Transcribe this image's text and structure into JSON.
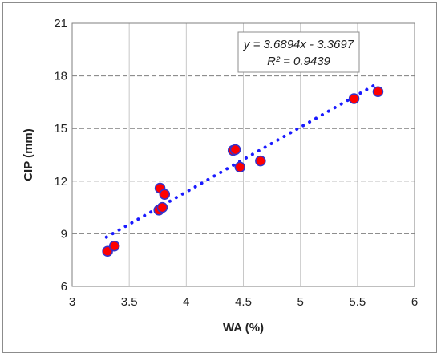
{
  "chart_data": {
    "type": "scatter",
    "xlabel": "WA (%)",
    "ylabel": "CIP (mm)",
    "xlim": [
      3,
      6
    ],
    "ylim": [
      6,
      21
    ],
    "x_ticks": [
      "3",
      "3.5",
      "4",
      "4.5",
      "5",
      "5.5",
      "6"
    ],
    "y_ticks": [
      "6",
      "9",
      "12",
      "15",
      "18",
      "21"
    ],
    "grid": {
      "x": "solid-vertical",
      "y": "dashed-horizontal"
    },
    "series": [
      {
        "points": [
          [
            3.31,
            8.0
          ],
          [
            3.37,
            8.3
          ],
          [
            3.76,
            10.35
          ],
          [
            3.79,
            10.5
          ],
          [
            3.77,
            11.6
          ],
          [
            3.81,
            11.25
          ],
          [
            4.41,
            13.75
          ],
          [
            4.43,
            13.8
          ],
          [
            4.47,
            12.8
          ],
          [
            4.65,
            13.15
          ],
          [
            5.47,
            16.7
          ],
          [
            5.68,
            17.1
          ]
        ],
        "marker_fill": "#ff0000",
        "marker_edge": "#3333cc"
      }
    ],
    "trendline": {
      "type": "linear",
      "slope": 3.6894,
      "intercept": -3.3697,
      "x_range": [
        3.3,
        5.65
      ],
      "color": "#1a1aff",
      "style": "dotted"
    },
    "annotation": {
      "equation": "y = 3.6894x - 3.3697",
      "r2": "R² = 0.9439"
    }
  }
}
